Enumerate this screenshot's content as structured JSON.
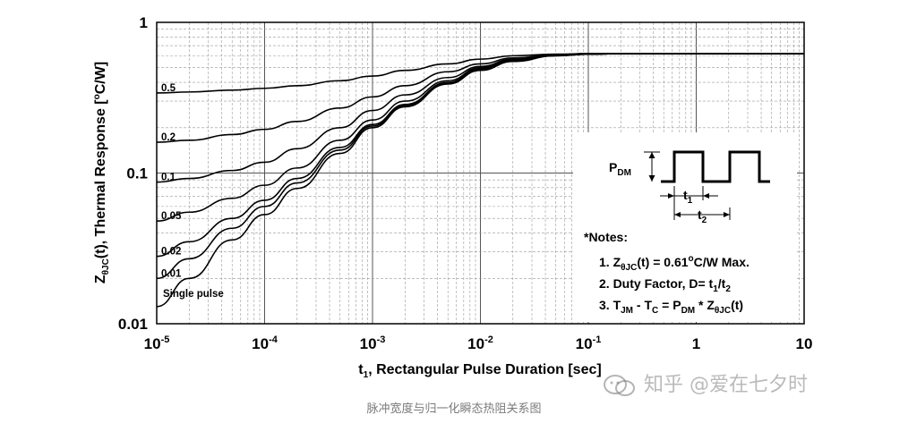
{
  "chart_data": {
    "type": "line",
    "x_scale": "log",
    "y_scale": "log",
    "xlim": [
      1e-05,
      10
    ],
    "ylim": [
      0.01,
      1
    ],
    "xlabel": "t1, Rectangular Pulse Duration [sec]",
    "ylabel": "ZθJC(t), Thermal Response [°C/W]",
    "x_ticks": [
      {
        "base": "10",
        "exp": "-5"
      },
      {
        "base": "10",
        "exp": "-4"
      },
      {
        "base": "10",
        "exp": "-3"
      },
      {
        "base": "10",
        "exp": "-2"
      },
      {
        "base": "10",
        "exp": "-1"
      },
      {
        "base": "1",
        "exp": ""
      },
      {
        "base": "10",
        "exp": ""
      }
    ],
    "y_ticks": [
      "1",
      "0.1",
      "0.01"
    ],
    "grid": true,
    "x": [
      1e-05,
      2e-05,
      5e-05,
      0.0001,
      0.0002,
      0.0005,
      0.001,
      0.002,
      0.005,
      0.01,
      0.02,
      0.05,
      0.1,
      0.2,
      0.5,
      1,
      2,
      5,
      10
    ],
    "series": [
      {
        "name": "0.5",
        "values": [
          0.34,
          0.345,
          0.355,
          0.365,
          0.38,
          0.41,
          0.44,
          0.48,
          0.53,
          0.57,
          0.6,
          0.615,
          0.62,
          0.62,
          0.62,
          0.62,
          0.62,
          0.62,
          0.62
        ]
      },
      {
        "name": "0.2",
        "values": [
          0.16,
          0.165,
          0.18,
          0.195,
          0.22,
          0.27,
          0.32,
          0.38,
          0.47,
          0.53,
          0.58,
          0.61,
          0.62,
          0.62,
          0.62,
          0.62,
          0.62,
          0.62,
          0.62
        ]
      },
      {
        "name": "0.1",
        "values": [
          0.087,
          0.092,
          0.104,
          0.118,
          0.145,
          0.2,
          0.26,
          0.33,
          0.43,
          0.51,
          0.57,
          0.61,
          0.62,
          0.62,
          0.62,
          0.62,
          0.62,
          0.62,
          0.62
        ]
      },
      {
        "name": "0.05",
        "values": [
          0.048,
          0.055,
          0.068,
          0.083,
          0.108,
          0.165,
          0.225,
          0.3,
          0.41,
          0.5,
          0.565,
          0.605,
          0.62,
          0.62,
          0.62,
          0.62,
          0.62,
          0.62,
          0.62
        ]
      },
      {
        "name": "0.02",
        "values": [
          0.028,
          0.035,
          0.05,
          0.066,
          0.092,
          0.148,
          0.21,
          0.285,
          0.4,
          0.49,
          0.56,
          0.6,
          0.615,
          0.62,
          0.62,
          0.62,
          0.62,
          0.62,
          0.62
        ]
      },
      {
        "name": "0.01",
        "values": [
          0.02,
          0.027,
          0.043,
          0.06,
          0.086,
          0.142,
          0.205,
          0.28,
          0.395,
          0.485,
          0.555,
          0.6,
          0.615,
          0.62,
          0.62,
          0.62,
          0.62,
          0.62,
          0.62
        ]
      },
      {
        "name": "Single pulse",
        "values": [
          0.013,
          0.02,
          0.036,
          0.053,
          0.079,
          0.135,
          0.2,
          0.275,
          0.39,
          0.48,
          0.55,
          0.6,
          0.615,
          0.62,
          0.62,
          0.62,
          0.62,
          0.62,
          0.62
        ]
      }
    ],
    "inset": {
      "pdm_label": "PDM",
      "t1_label": "t1",
      "t2_label": "t2"
    },
    "notes": {
      "title": "*Notes:",
      "items": [
        "1. ZθJC(t) = 0.61°C/W Max.",
        "2. Duty Factor, D= t1/t2",
        "3. TJM - TC = PDM * ZθJC(t)"
      ]
    }
  },
  "caption": "脉冲宽度与归一化瞬态热阻关系图",
  "watermark": "知乎 @爱在七夕时"
}
